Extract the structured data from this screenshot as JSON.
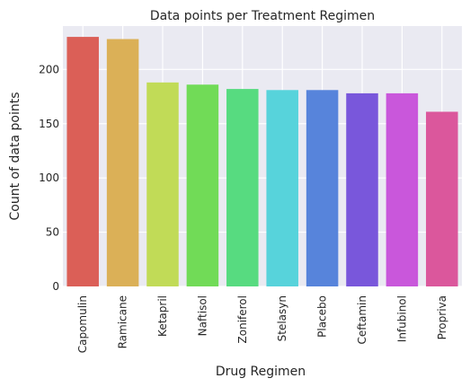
{
  "chart_data": {
    "type": "bar",
    "title": "Data points per Treatment Regimen",
    "xlabel": "Drug Regimen",
    "ylabel": "Count of data points",
    "categories": [
      "Capomulin",
      "Ramicane",
      "Ketapril",
      "Naftisol",
      "Zoniferol",
      "Stelasyn",
      "Placebo",
      "Ceftamin",
      "Infubinol",
      "Propriva"
    ],
    "values": [
      230,
      228,
      188,
      186,
      182,
      181,
      181,
      178,
      178,
      161
    ],
    "colors": [
      "#db5f57",
      "#dbb057",
      "#c1db57",
      "#71db57",
      "#57db80",
      "#57d3db",
      "#5784db",
      "#7957db",
      "#c957db",
      "#db579c"
    ],
    "ylim": [
      0,
      240
    ],
    "yticks": [
      0,
      50,
      100,
      150,
      200
    ],
    "grid": true,
    "background": "#eaeaf2"
  }
}
